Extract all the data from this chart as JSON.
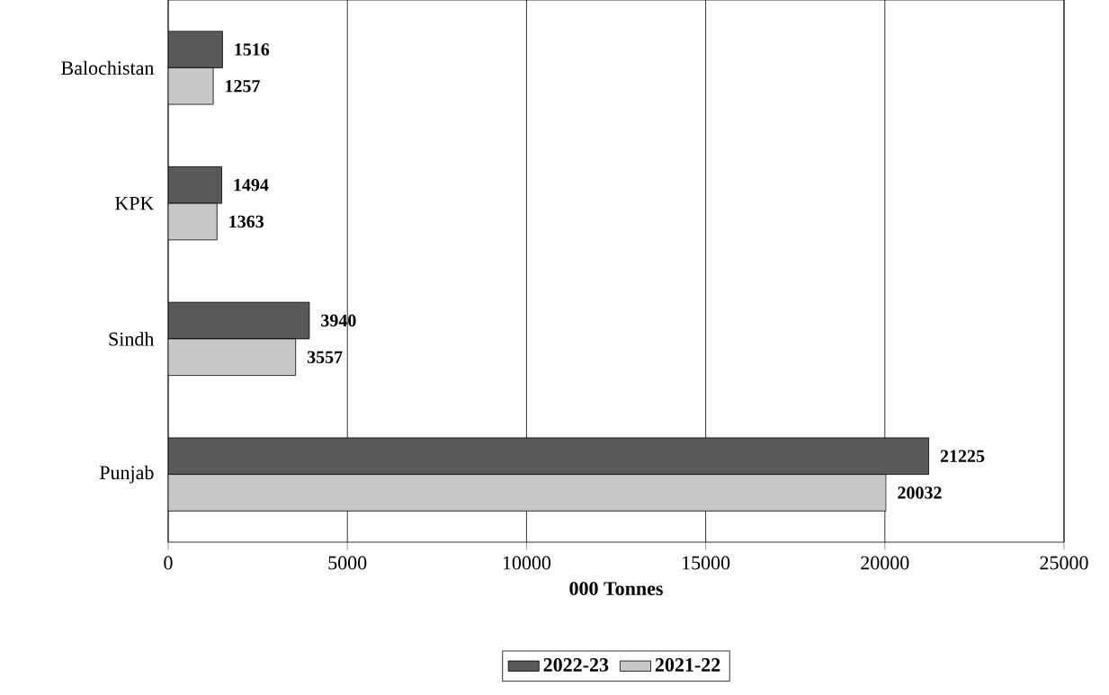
{
  "chart_data": {
    "type": "bar",
    "orientation": "horizontal",
    "xlabel": "000 Tonnes",
    "categories": [
      "Balochistan",
      "KPK",
      "Sindh",
      "Punjab"
    ],
    "series": [
      {
        "name": "2022-23",
        "color": "#595959",
        "values": [
          1516,
          1494,
          3940,
          21225
        ]
      },
      {
        "name": "2021-22",
        "color": "#c8c8c8",
        "values": [
          1257,
          1363,
          3557,
          20032
        ]
      }
    ],
    "xlim": [
      0,
      25000
    ],
    "xticks": [
      0,
      5000,
      10000,
      15000,
      20000,
      25000
    ],
    "grid": "x",
    "legend": "bottom",
    "data_labels": true
  }
}
